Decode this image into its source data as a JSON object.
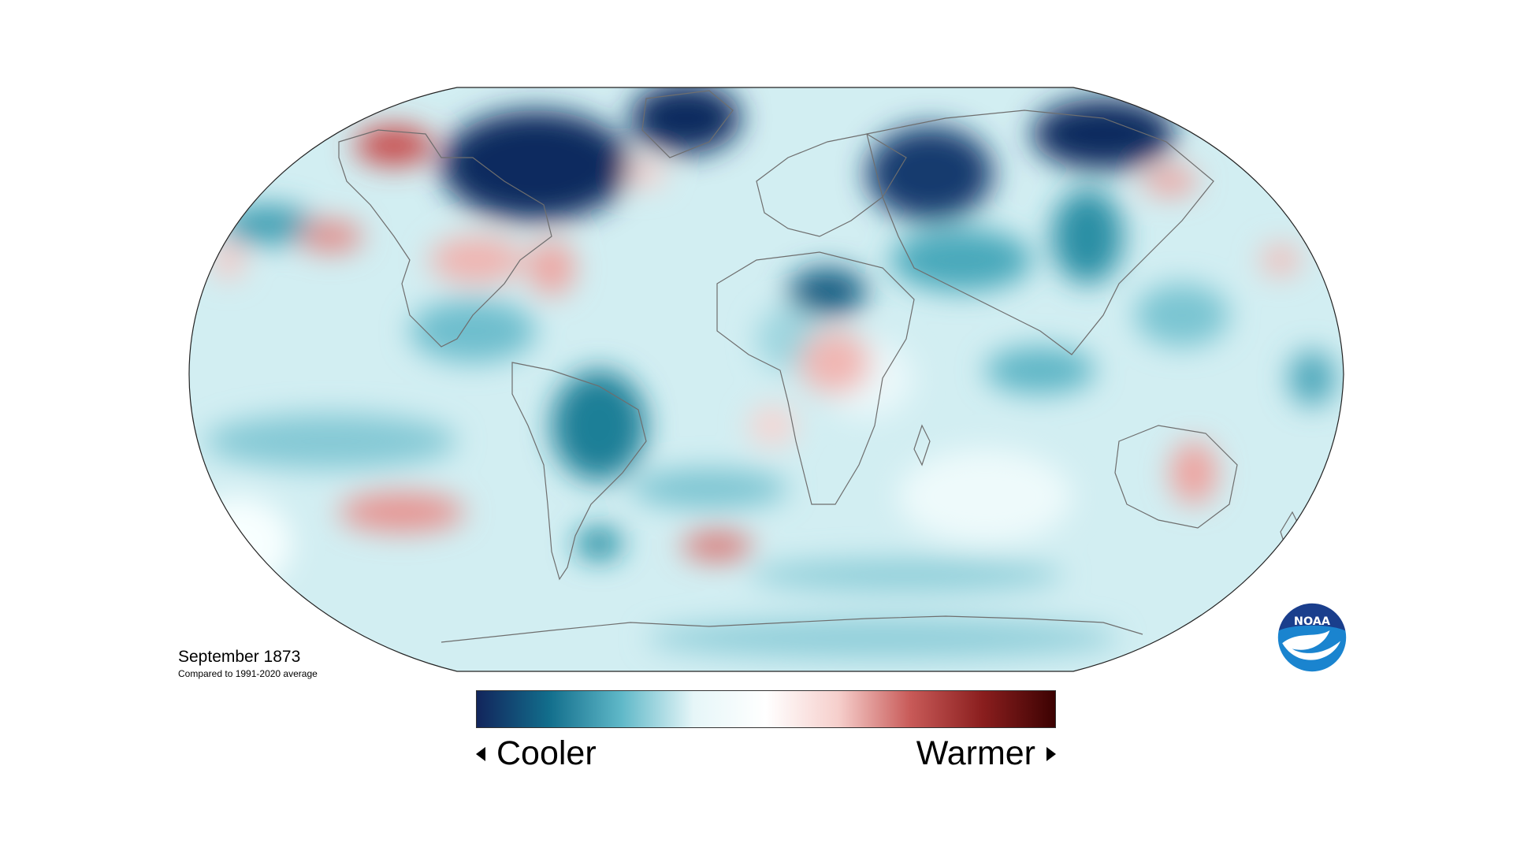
{
  "map": {
    "title": "September 1873",
    "subtitle": "Compared to 1991-2020 average",
    "projection": "Robinson",
    "background_anomaly_level": "slightly cooler",
    "colors": {
      "deep_cool": "#0f2a5e",
      "cool": "#127a94",
      "light_cool": "#9fd6e0",
      "neutral": "#ffffff",
      "light_warm": "#f2b5b0",
      "warm": "#c8494a",
      "deep_warm": "#4a0606",
      "land_outline": "#6e6e6e",
      "map_border": "#222222"
    }
  },
  "legend": {
    "left_label": "Cooler",
    "right_label": "Warmer",
    "gradient_stops": [
      "#12255c",
      "#126e8c",
      "#5fb8c8",
      "#e6f6f8",
      "#ffffff",
      "#f6cfcc",
      "#c85a58",
      "#8a1e1e",
      "#3c0202"
    ]
  },
  "logo": {
    "text": "NOAA",
    "icon": "noaa-logo-icon",
    "colors": {
      "top": "#1a3e8c",
      "bottom": "#1a84cf",
      "bird": "#ffffff"
    }
  }
}
